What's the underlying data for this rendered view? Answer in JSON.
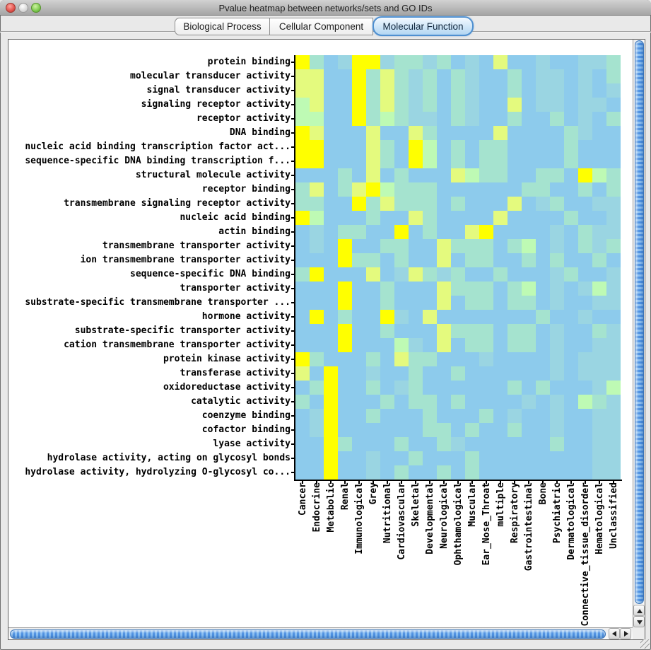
{
  "window": {
    "title": "Pvalue heatmap between networks/sets and GO IDs"
  },
  "tabs": {
    "selected": "Molecular Function",
    "items": [
      {
        "label": "Biological Process"
      },
      {
        "label": "Cellular Component"
      },
      {
        "label": "Molecular Function"
      }
    ]
  },
  "chart_data": {
    "type": "heatmap",
    "title": "Pvalue heatmap between networks/sets and GO IDs",
    "rows": [
      "protein binding",
      "molecular transducer activity",
      "signal transducer activity",
      "signaling receptor activity",
      "receptor activity",
      "DNA binding",
      "nucleic acid binding transcription factor act...",
      "sequence-specific DNA binding transcription f...",
      "structural molecule activity",
      "receptor binding",
      "transmembrane signaling receptor activity",
      "nucleic acid binding",
      "actin binding",
      "transmembrane transporter activity",
      "ion transmembrane transporter activity",
      "sequence-specific DNA binding",
      "transporter activity",
      "substrate-specific transmembrane transporter ...",
      "hormone activity",
      "substrate-specific transporter activity",
      "cation transmembrane transporter activity",
      "protein kinase activity",
      "transferase activity",
      "oxidoreductase activity",
      "catalytic activity",
      "coenzyme binding",
      "cofactor binding",
      "lyase activity",
      "hydrolase activity, acting on glycosyl bonds",
      "hydrolase activity, hydrolyzing O-glycosyl co..."
    ],
    "columns": [
      "Cancer",
      "Endocrine",
      "Metabolic",
      "Renal",
      "Immunological",
      "Grey",
      "Nutritional",
      "Cardiovascular",
      "Skeletal",
      "Developmental",
      "Neurological",
      "Ophthamological",
      "Muscular",
      "Ear_Nose_Throat",
      "multiple",
      "Respiratory",
      "Gastrointestinal",
      "Bone",
      "Psychiatric",
      "Dermatological",
      "Connective_tissue_disorder",
      "Hematological",
      "Unclassified"
    ],
    "value_scale": {
      "description": "Quantized -log10 p-value significance level per cell: 0 = least significant (light blue) through 5 = most significant (yellow)",
      "levels": [
        0,
        1,
        2,
        3,
        4,
        5
      ],
      "palette": [
        "#8DCBEC",
        "#9AD5E2",
        "#A5E3CF",
        "#BEFAB4",
        "#E4FA7E",
        "#FFFF00"
      ]
    },
    "values": [
      [
        5,
        2,
        0,
        1,
        5,
        5,
        1,
        2,
        2,
        1,
        2,
        0,
        1,
        0,
        4,
        0,
        0,
        1,
        0,
        0,
        1,
        1,
        2
      ],
      [
        4,
        4,
        0,
        0,
        5,
        2,
        4,
        2,
        1,
        2,
        0,
        2,
        1,
        0,
        0,
        2,
        0,
        1,
        1,
        0,
        1,
        0,
        2
      ],
      [
        4,
        4,
        0,
        0,
        5,
        2,
        4,
        2,
        1,
        2,
        0,
        2,
        1,
        0,
        0,
        2,
        0,
        1,
        1,
        0,
        1,
        0,
        1
      ],
      [
        3,
        4,
        0,
        0,
        5,
        2,
        4,
        2,
        1,
        2,
        0,
        2,
        1,
        0,
        0,
        4,
        0,
        1,
        1,
        0,
        1,
        1,
        0
      ],
      [
        3,
        3,
        0,
        0,
        5,
        2,
        3,
        2,
        1,
        1,
        0,
        2,
        1,
        0,
        0,
        2,
        0,
        0,
        2,
        0,
        1,
        0,
        2
      ],
      [
        5,
        4,
        0,
        0,
        0,
        4,
        0,
        0,
        4,
        2,
        0,
        0,
        0,
        0,
        4,
        0,
        0,
        0,
        0,
        2,
        1,
        0,
        0
      ],
      [
        5,
        5,
        0,
        0,
        0,
        4,
        2,
        0,
        5,
        3,
        0,
        2,
        0,
        2,
        2,
        0,
        0,
        0,
        0,
        2,
        0,
        0,
        0
      ],
      [
        5,
        5,
        0,
        0,
        0,
        4,
        2,
        0,
        5,
        3,
        0,
        2,
        0,
        2,
        2,
        0,
        0,
        0,
        0,
        2,
        0,
        0,
        0
      ],
      [
        0,
        0,
        0,
        2,
        0,
        4,
        0,
        2,
        0,
        0,
        0,
        4,
        3,
        2,
        2,
        0,
        0,
        2,
        2,
        0,
        5,
        3,
        2
      ],
      [
        2,
        4,
        0,
        2,
        4,
        5,
        3,
        2,
        2,
        2,
        0,
        0,
        0,
        0,
        0,
        0,
        2,
        2,
        0,
        0,
        2,
        0,
        2
      ],
      [
        2,
        2,
        0,
        0,
        5,
        2,
        4,
        2,
        2,
        2,
        0,
        2,
        0,
        0,
        0,
        4,
        0,
        1,
        2,
        0,
        0,
        1,
        1
      ],
      [
        5,
        3,
        0,
        0,
        0,
        2,
        0,
        0,
        4,
        2,
        0,
        0,
        0,
        0,
        4,
        0,
        0,
        0,
        0,
        2,
        0,
        0,
        1
      ],
      [
        0,
        1,
        0,
        2,
        2,
        0,
        0,
        5,
        0,
        2,
        0,
        0,
        4,
        5,
        0,
        0,
        0,
        0,
        1,
        0,
        2,
        1,
        1
      ],
      [
        0,
        1,
        0,
        5,
        0,
        0,
        2,
        2,
        0,
        0,
        4,
        2,
        2,
        2,
        0,
        2,
        3,
        0,
        1,
        0,
        2,
        1,
        2
      ],
      [
        0,
        0,
        0,
        5,
        2,
        2,
        0,
        2,
        0,
        0,
        4,
        0,
        2,
        2,
        0,
        0,
        2,
        0,
        2,
        0,
        0,
        2,
        0
      ],
      [
        2,
        5,
        0,
        0,
        0,
        4,
        0,
        1,
        4,
        2,
        1,
        2,
        0,
        0,
        2,
        0,
        0,
        0,
        1,
        2,
        0,
        0,
        1
      ],
      [
        0,
        0,
        0,
        5,
        0,
        0,
        2,
        0,
        0,
        0,
        4,
        2,
        2,
        2,
        0,
        2,
        3,
        0,
        1,
        0,
        1,
        3,
        1
      ],
      [
        0,
        0,
        0,
        5,
        0,
        0,
        2,
        0,
        0,
        0,
        4,
        0,
        2,
        2,
        0,
        2,
        2,
        0,
        1,
        0,
        0,
        1,
        1
      ],
      [
        0,
        5,
        0,
        2,
        0,
        0,
        5,
        1,
        0,
        4,
        0,
        0,
        0,
        0,
        0,
        0,
        0,
        2,
        0,
        0,
        1,
        0,
        0
      ],
      [
        0,
        0,
        0,
        5,
        0,
        0,
        2,
        0,
        0,
        0,
        4,
        2,
        2,
        2,
        0,
        2,
        2,
        0,
        1,
        0,
        0,
        2,
        1
      ],
      [
        0,
        0,
        0,
        5,
        0,
        0,
        0,
        3,
        1,
        0,
        4,
        0,
        2,
        2,
        0,
        2,
        2,
        0,
        1,
        0,
        0,
        1,
        1
      ],
      [
        5,
        2,
        0,
        0,
        0,
        2,
        0,
        4,
        2,
        2,
        0,
        0,
        0,
        1,
        0,
        0,
        0,
        0,
        1,
        0,
        1,
        1,
        1
      ],
      [
        4,
        0,
        5,
        0,
        0,
        1,
        0,
        0,
        2,
        0,
        0,
        2,
        0,
        0,
        0,
        0,
        0,
        0,
        1,
        0,
        1,
        1,
        1
      ],
      [
        0,
        2,
        5,
        0,
        0,
        2,
        0,
        1,
        2,
        0,
        0,
        0,
        0,
        0,
        0,
        2,
        0,
        2,
        0,
        0,
        0,
        1,
        3
      ],
      [
        2,
        0,
        5,
        0,
        0,
        0,
        2,
        0,
        2,
        2,
        0,
        2,
        0,
        0,
        0,
        0,
        1,
        0,
        1,
        0,
        3,
        2,
        1
      ],
      [
        0,
        1,
        5,
        0,
        0,
        2,
        0,
        0,
        0,
        2,
        0,
        0,
        0,
        2,
        0,
        1,
        0,
        0,
        1,
        0,
        0,
        1,
        1
      ],
      [
        0,
        1,
        5,
        0,
        0,
        0,
        0,
        0,
        0,
        2,
        2,
        0,
        2,
        0,
        0,
        2,
        0,
        0,
        1,
        0,
        0,
        1,
        1
      ],
      [
        0,
        0,
        5,
        2,
        0,
        0,
        0,
        2,
        0,
        0,
        2,
        1,
        0,
        0,
        0,
        0,
        0,
        0,
        2,
        0,
        0,
        1,
        1
      ],
      [
        0,
        0,
        5,
        0,
        0,
        1,
        0,
        0,
        2,
        0,
        0,
        0,
        2,
        0,
        0,
        0,
        0,
        0,
        0,
        0,
        0,
        1,
        1
      ],
      [
        0,
        0,
        5,
        0,
        0,
        1,
        0,
        2,
        0,
        0,
        2,
        0,
        2,
        0,
        0,
        0,
        0,
        0,
        0,
        0,
        0,
        1,
        1
      ]
    ],
    "layout": {
      "cell_size_px": 20,
      "grid_lines": false,
      "row_labels_side": "left",
      "column_labels_rotation_deg": -90
    }
  }
}
